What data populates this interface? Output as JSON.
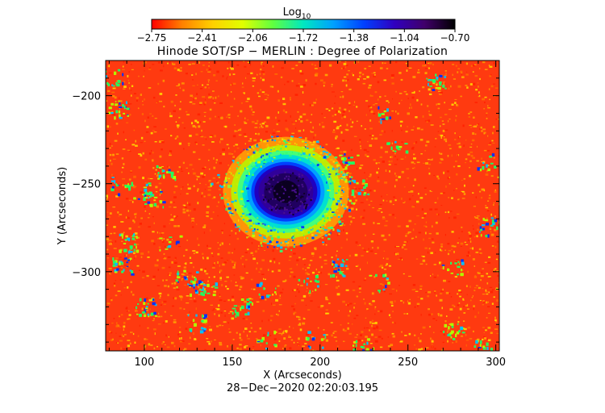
{
  "colorbar": {
    "title_main": "Log",
    "title_sub": "10",
    "ticks": [
      "−2.75",
      "−2.41",
      "−2.06",
      "−1.72",
      "−1.38",
      "−1.04",
      "−0.70"
    ],
    "colors": [
      "#ff0000",
      "#ff8000",
      "#ffd000",
      "#e0ff00",
      "#60ff40",
      "#00e8c0",
      "#00a0ff",
      "#0040ff",
      "#3000c0",
      "#40006a",
      "#000000"
    ]
  },
  "plot": {
    "title": "Hinode SOT/SP − MERLIN : Degree of Polarization",
    "xlabel": "X (Arcseconds)",
    "ylabel": "Y (Arcseconds)",
    "x_ticks": [
      "100",
      "150",
      "200",
      "250",
      "300"
    ],
    "y_ticks": [
      "−200",
      "−250",
      "−300"
    ],
    "x_range": [
      78,
      302
    ],
    "y_range": [
      -345,
      -180
    ],
    "x_tick_values": [
      100,
      150,
      200,
      250,
      300
    ],
    "y_tick_values": [
      -200,
      -250,
      -300
    ],
    "timestamp": "28−Dec−2020 02:20:03.195",
    "spot_center": [
      181,
      -255
    ]
  }
}
